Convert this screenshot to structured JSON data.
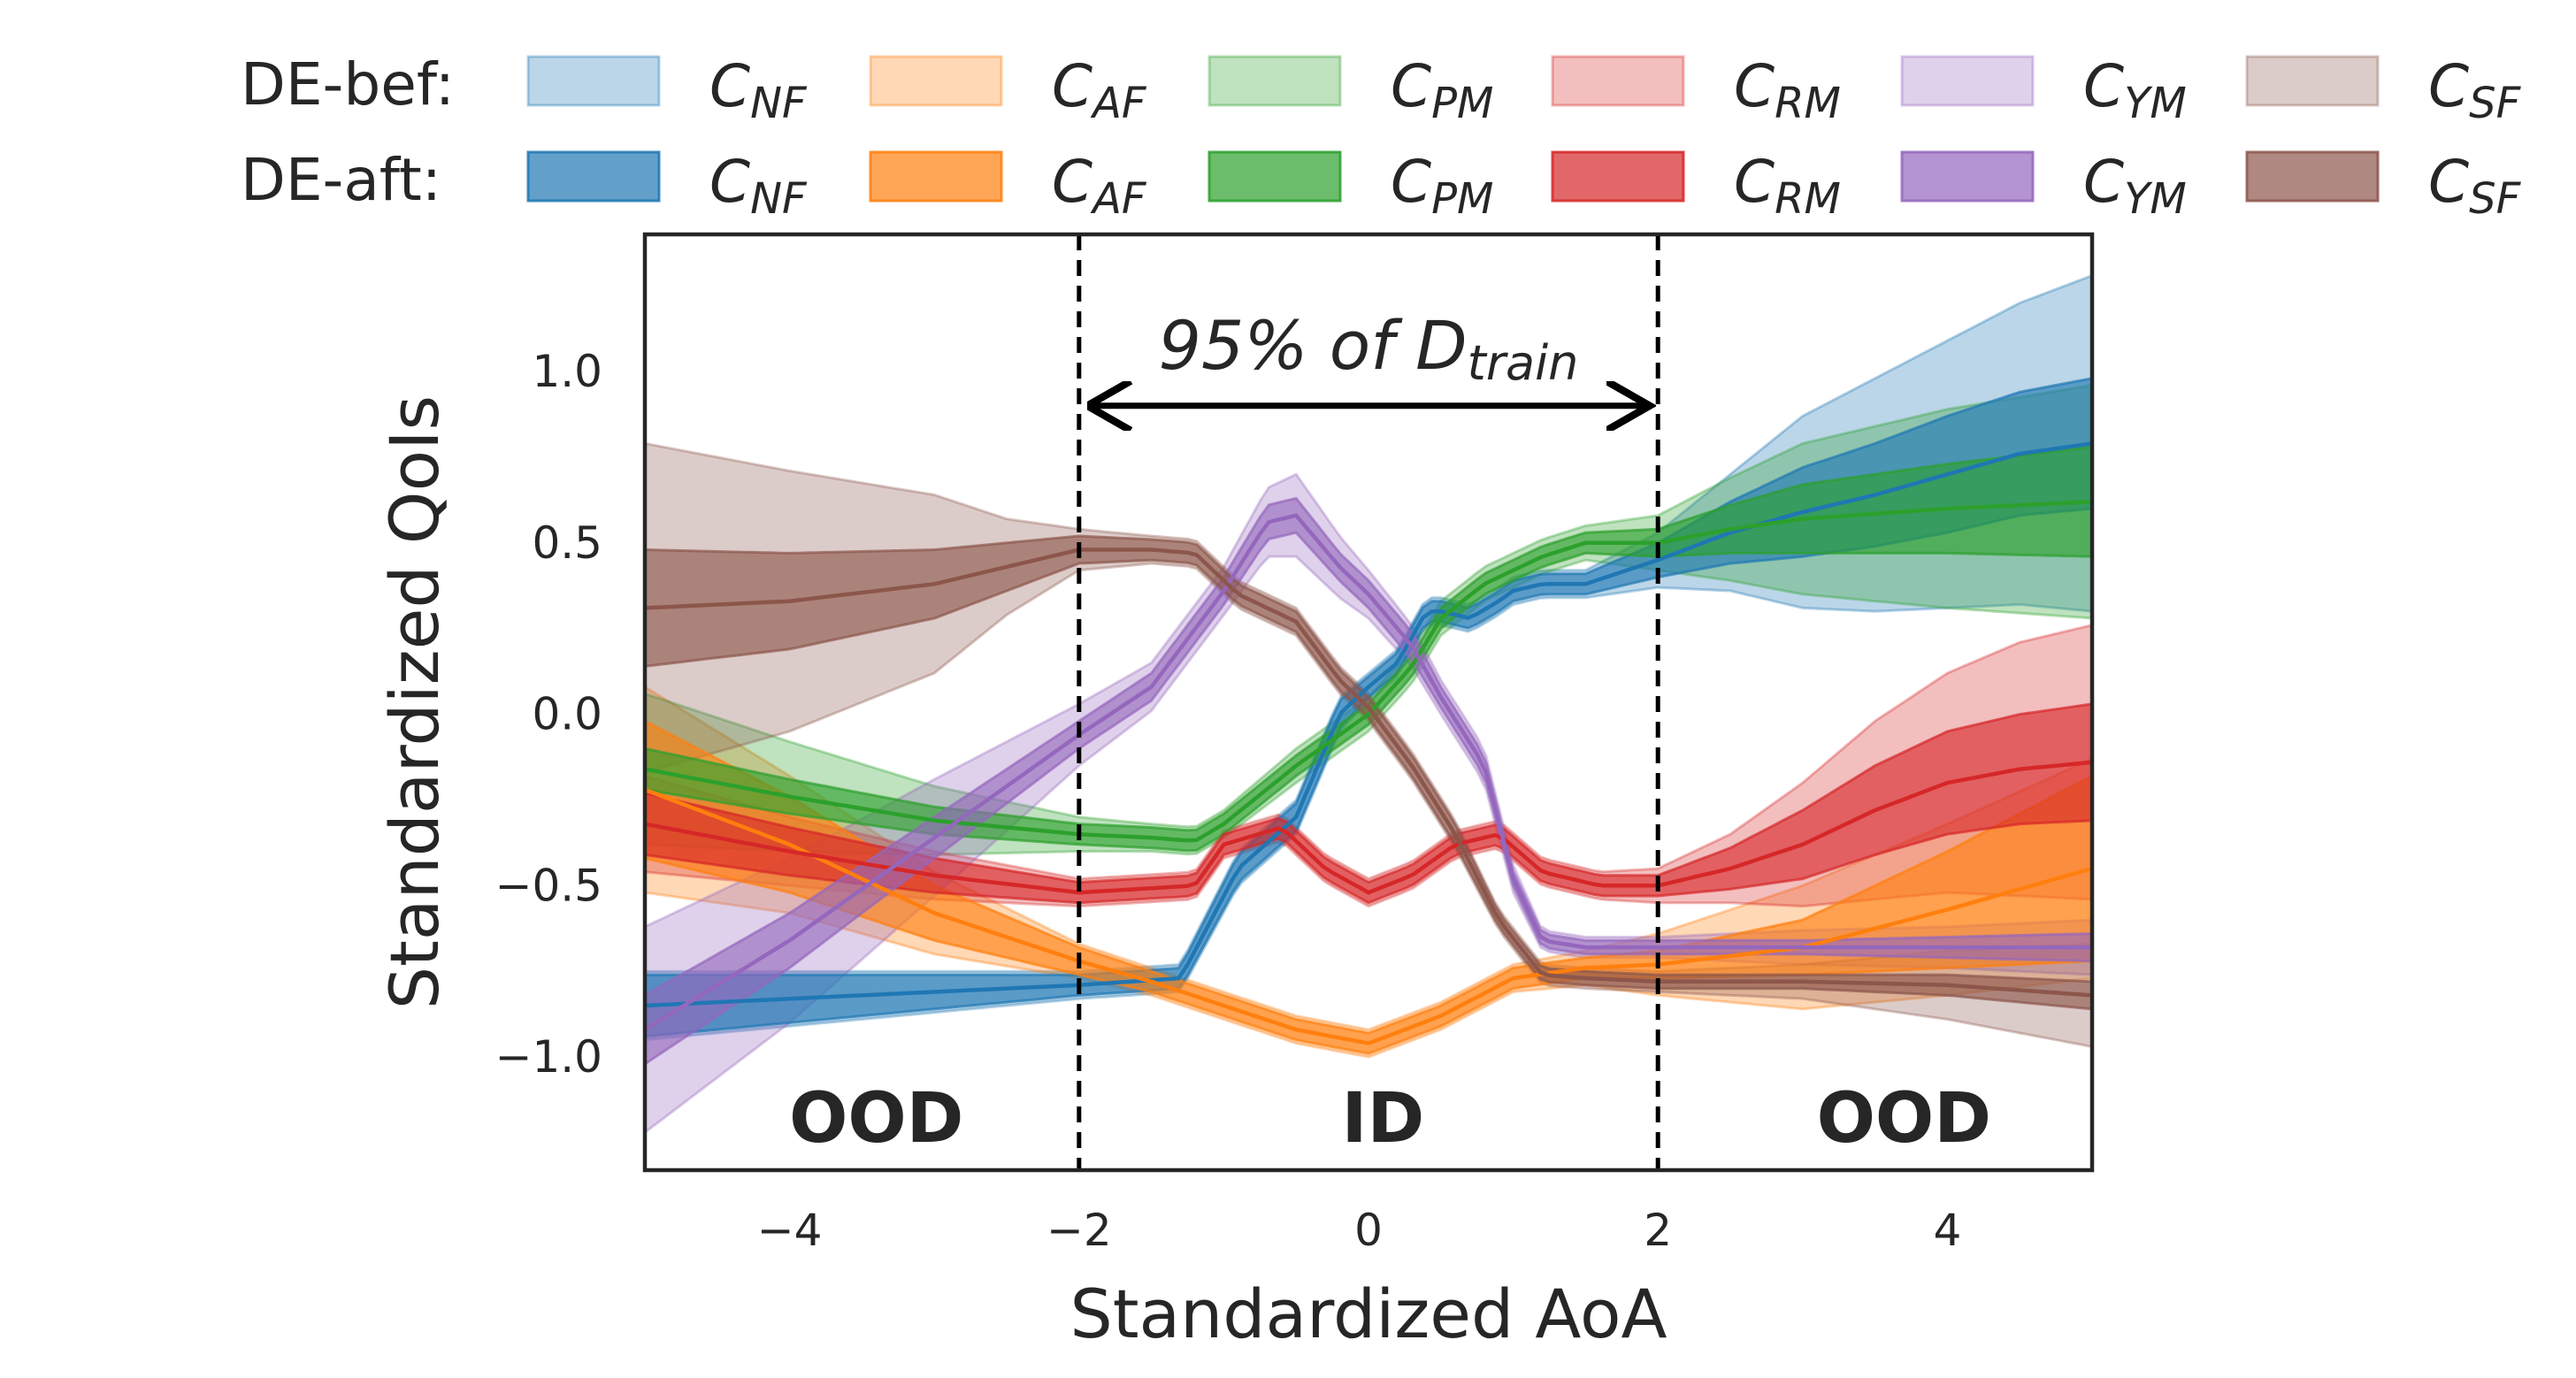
{
  "chart_data": {
    "type": "line",
    "xlabel": "Standardized AoA",
    "ylabel": "Standardized QoIs",
    "xlim": [
      -5,
      5
    ],
    "ylim": [
      -1.33,
      1.4
    ],
    "xticks": [
      -4,
      -2,
      0,
      2,
      4
    ],
    "xtick_labels": [
      "−4",
      "−2",
      "0",
      "2",
      "4"
    ],
    "yticks": [
      -1.0,
      -0.5,
      0.0,
      0.5,
      1.0
    ],
    "ytick_labels": [
      "−1.0",
      "−0.5",
      "0.0",
      "0.5",
      "1.0"
    ],
    "grid": false,
    "legend": {
      "placement": "top",
      "rows": [
        {
          "label": "DE-bef:",
          "style": "light"
        },
        {
          "label": "DE-aft:",
          "style": "dark"
        }
      ]
    },
    "vlines": [
      -2,
      2
    ],
    "annotation": {
      "text": "95% of ",
      "symbol": "D",
      "subscript": "train",
      "arrow_from": -1.9,
      "arrow_to": 1.9,
      "y": 0.9
    },
    "regions": [
      {
        "label": "OOD",
        "x": -3.4
      },
      {
        "label": "ID",
        "x": 0.1
      },
      {
        "label": "OOD",
        "x": 3.7
      }
    ],
    "series": [
      {
        "name": "C_NF",
        "symbol": "C",
        "subscript": "NF",
        "color": "#1f77b4",
        "x": [
          -5,
          -4,
          -3,
          -2,
          -1.3,
          -0.9,
          -0.5,
          -0.2,
          0,
          0.2,
          0.4,
          0.5,
          0.7,
          0.9,
          1.0,
          1.2,
          1.5,
          2,
          2.5,
          3,
          3.5,
          4,
          4.5,
          5
        ],
        "y": [
          -0.85,
          -0.83,
          -0.81,
          -0.79,
          -0.77,
          -0.45,
          -0.3,
          0.0,
          0.08,
          0.15,
          0.3,
          0.3,
          0.28,
          0.33,
          0.36,
          0.38,
          0.38,
          0.45,
          0.53,
          0.59,
          0.64,
          0.7,
          0.76,
          0.79
        ],
        "aft_hw": [
          0.09,
          0.07,
          0.05,
          0.03,
          0.03,
          0.04,
          0.04,
          0.04,
          0.03,
          0.03,
          0.03,
          0.03,
          0.03,
          0.03,
          0.03,
          0.03,
          0.03,
          0.05,
          0.09,
          0.13,
          0.15,
          0.17,
          0.18,
          0.19
        ],
        "bef_hw": [
          0.1,
          0.08,
          0.06,
          0.04,
          0.04,
          0.05,
          0.05,
          0.05,
          0.04,
          0.04,
          0.04,
          0.04,
          0.04,
          0.04,
          0.04,
          0.04,
          0.04,
          0.08,
          0.17,
          0.28,
          0.34,
          0.39,
          0.44,
          0.49
        ]
      },
      {
        "name": "C_AF",
        "symbol": "C",
        "subscript": "AF",
        "color": "#ff7f0e",
        "x": [
          -5,
          -4,
          -3,
          -2,
          -1.5,
          -1,
          -0.5,
          0,
          0.5,
          1,
          1.5,
          2,
          3,
          4,
          5
        ],
        "y": [
          -0.22,
          -0.38,
          -0.58,
          -0.72,
          -0.78,
          -0.85,
          -0.92,
          -0.96,
          -0.88,
          -0.77,
          -0.74,
          -0.73,
          -0.68,
          -0.57,
          -0.45
        ],
        "aft_hw": [
          0.2,
          0.14,
          0.08,
          0.04,
          0.03,
          0.03,
          0.03,
          0.03,
          0.03,
          0.03,
          0.03,
          0.04,
          0.08,
          0.17,
          0.27
        ],
        "bef_hw": [
          0.3,
          0.2,
          0.12,
          0.05,
          0.04,
          0.04,
          0.04,
          0.04,
          0.04,
          0.04,
          0.05,
          0.09,
          0.18,
          0.25,
          0.32
        ]
      },
      {
        "name": "C_PM",
        "symbol": "C",
        "subscript": "PM",
        "color": "#2ca02c",
        "x": [
          -5,
          -4,
          -3,
          -2,
          -1.5,
          -1.2,
          -1,
          -0.5,
          0,
          0.3,
          0.5,
          0.8,
          1.2,
          1.5,
          2,
          2.5,
          3,
          4,
          5
        ],
        "y": [
          -0.16,
          -0.24,
          -0.31,
          -0.35,
          -0.36,
          -0.37,
          -0.32,
          -0.15,
          0.0,
          0.14,
          0.28,
          0.38,
          0.46,
          0.5,
          0.5,
          0.54,
          0.57,
          0.6,
          0.62
        ],
        "aft_hw": [
          0.06,
          0.05,
          0.04,
          0.03,
          0.03,
          0.03,
          0.03,
          0.03,
          0.03,
          0.03,
          0.03,
          0.03,
          0.03,
          0.03,
          0.04,
          0.07,
          0.1,
          0.13,
          0.16
        ],
        "bef_hw": [
          0.22,
          0.16,
          0.1,
          0.05,
          0.04,
          0.04,
          0.04,
          0.05,
          0.05,
          0.05,
          0.05,
          0.05,
          0.05,
          0.05,
          0.08,
          0.15,
          0.22,
          0.29,
          0.34
        ]
      },
      {
        "name": "C_RM",
        "symbol": "C",
        "subscript": "RM",
        "color": "#d62728",
        "x": [
          -5,
          -4,
          -3,
          -2,
          -1.2,
          -1,
          -0.6,
          -0.3,
          0,
          0.3,
          0.6,
          0.9,
          1.2,
          1.6,
          2,
          2.5,
          3,
          3.5,
          4,
          4.5,
          5
        ],
        "y": [
          -0.32,
          -0.4,
          -0.47,
          -0.52,
          -0.5,
          -0.38,
          -0.33,
          -0.45,
          -0.52,
          -0.47,
          -0.38,
          -0.35,
          -0.46,
          -0.5,
          -0.5,
          -0.45,
          -0.38,
          -0.28,
          -0.2,
          -0.16,
          -0.14
        ],
        "aft_hw": [
          0.09,
          0.07,
          0.05,
          0.03,
          0.03,
          0.03,
          0.03,
          0.03,
          0.03,
          0.03,
          0.03,
          0.03,
          0.03,
          0.03,
          0.03,
          0.06,
          0.1,
          0.13,
          0.15,
          0.16,
          0.17
        ],
        "bef_hw": [
          0.14,
          0.1,
          0.07,
          0.04,
          0.04,
          0.04,
          0.04,
          0.04,
          0.04,
          0.04,
          0.04,
          0.04,
          0.04,
          0.04,
          0.05,
          0.1,
          0.18,
          0.26,
          0.32,
          0.37,
          0.4
        ]
      },
      {
        "name": "C_YM",
        "symbol": "C",
        "subscript": "YM",
        "color": "#9467bd",
        "x": [
          -5,
          -4,
          -3,
          -2,
          -1.5,
          -1,
          -0.7,
          -0.5,
          -0.2,
          0,
          0.3,
          0.5,
          0.8,
          1.0,
          1.2,
          1.5,
          2,
          3,
          4,
          5
        ],
        "y": [
          -0.92,
          -0.66,
          -0.36,
          -0.06,
          0.08,
          0.36,
          0.56,
          0.58,
          0.43,
          0.35,
          0.2,
          0.05,
          -0.15,
          -0.48,
          -0.66,
          -0.68,
          -0.68,
          -0.68,
          -0.68,
          -0.68
        ],
        "aft_hw": [
          0.1,
          0.08,
          0.06,
          0.04,
          0.04,
          0.04,
          0.05,
          0.05,
          0.04,
          0.04,
          0.04,
          0.03,
          0.03,
          0.02,
          0.02,
          0.02,
          0.02,
          0.02,
          0.03,
          0.04
        ],
        "bef_hw": [
          0.3,
          0.24,
          0.17,
          0.09,
          0.07,
          0.07,
          0.1,
          0.12,
          0.09,
          0.07,
          0.06,
          0.05,
          0.05,
          0.04,
          0.03,
          0.03,
          0.03,
          0.05,
          0.06,
          0.08
        ]
      },
      {
        "name": "C_SF",
        "symbol": "C",
        "subscript": "SF",
        "color": "#8c564b",
        "x": [
          -5,
          -4,
          -3,
          -2.5,
          -2,
          -1.5,
          -1.2,
          -0.9,
          -0.5,
          -0.2,
          0,
          0.3,
          0.6,
          0.9,
          1.2,
          1.5,
          2,
          3,
          4,
          5
        ],
        "y": [
          0.31,
          0.33,
          0.38,
          0.43,
          0.48,
          0.48,
          0.47,
          0.35,
          0.27,
          0.1,
          0.02,
          -0.15,
          -0.35,
          -0.6,
          -0.76,
          -0.77,
          -0.78,
          -0.78,
          -0.79,
          -0.82
        ],
        "aft_hw": [
          0.17,
          0.14,
          0.1,
          0.07,
          0.04,
          0.03,
          0.03,
          0.03,
          0.03,
          0.03,
          0.03,
          0.03,
          0.03,
          0.02,
          0.02,
          0.02,
          0.02,
          0.02,
          0.03,
          0.04
        ],
        "bef_hw": [
          0.48,
          0.38,
          0.26,
          0.14,
          0.06,
          0.04,
          0.04,
          0.04,
          0.04,
          0.04,
          0.04,
          0.04,
          0.04,
          0.03,
          0.03,
          0.03,
          0.03,
          0.05,
          0.1,
          0.15
        ]
      }
    ]
  }
}
